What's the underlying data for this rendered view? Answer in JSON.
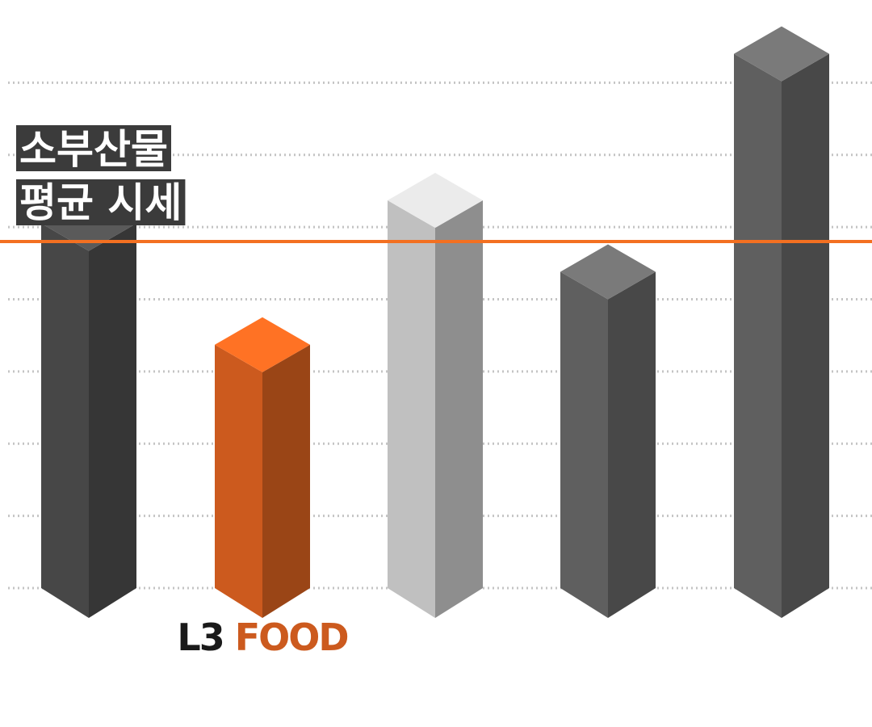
{
  "chart_data": {
    "type": "bar3d",
    "categories": [
      null,
      "L3 FOOD",
      null,
      null,
      null
    ],
    "values": [
      5.05,
      3.37,
      5.37,
      4.38,
      7.4
    ],
    "colors": [
      [
        "#5a5a5a",
        "#474747",
        "#363636"
      ],
      [
        "#ff7224",
        "#cc5a1e",
        "#9a4516"
      ],
      [
        "#ebebeb",
        "#c0c0c0",
        "#8e8e8e"
      ],
      [
        "#7a7a7a",
        "#5f5f5f",
        "#484848"
      ],
      [
        "#7a7a7a",
        "#5f5f5f",
        "#484848"
      ]
    ],
    "ylim": [
      0,
      8
    ],
    "yticks": [
      0,
      1,
      2,
      3,
      4,
      5,
      6,
      7
    ],
    "grid": true,
    "average": {
      "value": 4.8,
      "color": "#f37021",
      "label": [
        "소부산물",
        "평균 시세"
      ]
    }
  }
}
